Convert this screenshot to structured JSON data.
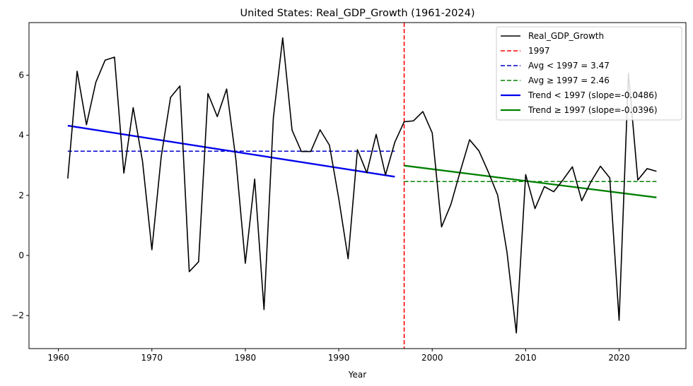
{
  "chart_data": {
    "type": "line",
    "title": "United States: Real_GDP_Growth (1961-2024)",
    "xlabel": "Year",
    "ylabel": "",
    "xlim": [
      1956.85,
      2027.15
    ],
    "ylim": [
      -3.1,
      7.75
    ],
    "xticks": [
      1960,
      1970,
      1980,
      1990,
      2000,
      2010,
      2020
    ],
    "yticks": [
      -2,
      0,
      2,
      4,
      6
    ],
    "ytick_labels": [
      "−2",
      "0",
      "2",
      "4",
      "6"
    ],
    "series": [
      {
        "name": "Real_GDP_Growth",
        "color": "#000000",
        "style": "solid",
        "x": [
          1961,
          1962,
          1963,
          1964,
          1965,
          1966,
          1967,
          1968,
          1969,
          1970,
          1971,
          1972,
          1973,
          1974,
          1975,
          1976,
          1977,
          1978,
          1979,
          1980,
          1981,
          1982,
          1983,
          1984,
          1985,
          1986,
          1987,
          1988,
          1989,
          1990,
          1991,
          1992,
          1993,
          1994,
          1995,
          1996,
          1997,
          1998,
          1999,
          2000,
          2001,
          2002,
          2003,
          2004,
          2005,
          2006,
          2007,
          2008,
          2009,
          2010,
          2011,
          2012,
          2013,
          2014,
          2015,
          2016,
          2017,
          2018,
          2019,
          2020,
          2021,
          2022,
          2023,
          2024
        ],
        "values": [
          2.56,
          6.13,
          4.35,
          5.76,
          6.5,
          6.6,
          2.74,
          4.92,
          3.13,
          0.19,
          3.29,
          5.26,
          5.64,
          -0.54,
          -0.21,
          5.39,
          4.62,
          5.54,
          3.17,
          -0.26,
          2.54,
          -1.8,
          4.58,
          7.24,
          4.17,
          3.46,
          3.46,
          4.18,
          3.67,
          1.89,
          -0.11,
          3.52,
          2.75,
          4.03,
          2.68,
          3.77,
          4.45,
          4.48,
          4.79,
          4.08,
          0.95,
          1.7,
          2.8,
          3.85,
          3.48,
          2.78,
          2.01,
          0.11,
          -2.58,
          2.69,
          1.56,
          2.29,
          2.12,
          2.52,
          2.95,
          1.82,
          2.46,
          2.97,
          2.58,
          -2.16,
          6.06,
          2.51,
          2.89,
          2.8
        ]
      }
    ],
    "reference_lines": [
      {
        "name": "1997",
        "orientation": "vertical",
        "x": 1997,
        "color": "#ff0000",
        "style": "dashed"
      },
      {
        "name": "Avg < 1997 = 3.47",
        "orientation": "horizontal",
        "y": 3.47,
        "x_range": [
          1961,
          1996
        ],
        "color": "#0000cc",
        "style": "dashed"
      },
      {
        "name": "Avg ≥ 1997 = 2.46",
        "orientation": "horizontal",
        "y": 2.46,
        "x_range": [
          1997,
          2024
        ],
        "color": "#008000",
        "style": "dashed"
      },
      {
        "name": "Trend < 1997 (slope=-0.0486)",
        "orientation": "segment",
        "x_range": [
          1961,
          1996
        ],
        "y_range": [
          4.32,
          2.62
        ],
        "color": "#0000ee",
        "style": "solid-thick"
      },
      {
        "name": "Trend ≥ 1997 (slope=-0.0396)",
        "orientation": "segment",
        "x_range": [
          1997,
          2024
        ],
        "y_range": [
          2.99,
          1.93
        ],
        "color": "#008000",
        "style": "solid-thick"
      }
    ],
    "legend": {
      "placement": "top-right",
      "entries": [
        {
          "label": "Real_GDP_Growth",
          "color": "#000000",
          "style": "solid"
        },
        {
          "label": "1997",
          "color": "#ff0000",
          "style": "dashed"
        },
        {
          "label": "Avg < 1997 = 3.47",
          "color": "#0000cc",
          "style": "dashed"
        },
        {
          "label": "Avg ≥ 1997 = 2.46",
          "color": "#008000",
          "style": "dashed"
        },
        {
          "label": "Trend < 1997 (slope=-0.0486)",
          "color": "#0000ee",
          "style": "solid-thick"
        },
        {
          "label": "Trend ≥ 1997 (slope=-0.0396)",
          "color": "#008000",
          "style": "solid-thick"
        }
      ]
    }
  }
}
